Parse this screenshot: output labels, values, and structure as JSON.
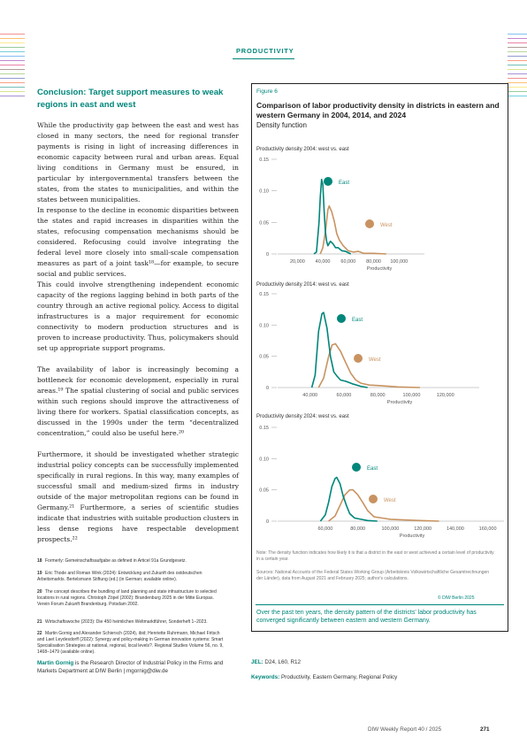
{
  "header": {
    "section": "PRODUCTIVITY"
  },
  "article": {
    "heading": "Conclusion: Target support measures to weak regions in east and west",
    "paragraphs": [
      "While the productivity gap between the east and west has closed in many sectors, the need for regional transfer payments is rising in light of increasing differences in economic capacity between rural and urban areas. Equal living conditions in Germany must be ensured, in particular by intergovernmental transfers between the states, from the states to municipalities, and within the states between municipalities.",
      "In response to the decline in economic disparities between the states and rapid increases in disparities within the states, refocusing compensation mechanisms should be considered. Refocusing could involve integrating the federal level more closely into small-scale compensation measures as part of a joint task¹⁸—for example, to secure social and public services.",
      "This could involve strengthening independent economic capacity of the regions lagging behind in both parts of the country through an active regional policy. Access to digital infrastructures is a major requirement for economic connectivity to modern production structures and is proven to increase productivity. Thus, policymakers should set up appropriate support programs.",
      "The availability of labor is increasingly becoming a bottleneck for economic development, especially in rural areas.¹⁹ The spatial clustering of social and public services within such regions should improve the attractiveness of living there for workers. Spatial classification concepts, as discussed in the 1990s under the term “decentralized concentration,” could also be useful here.²⁰",
      "Furthermore, it should be investigated whether strategic industrial policy concepts can be successfully implemented specifically in rural regions. In this way, many examples of successful small and medium-sized firms in industry outside of the major metropolitan regions can be found in Germany.²¹ Furthermore, a series of scientific studies indicate that industries with suitable production clusters in less dense regions have respectable development prospects.²²"
    ]
  },
  "footnotes": [
    {
      "num": "18",
      "text": "Formerly: Gemeinschaftsaufgabe as defined in Articel 91a Grundgesetz."
    },
    {
      "num": "19",
      "text": "Eric Thode and Roman Wink (2024): Entwicklung und Zukunft des ostdeutschen Arbeitsmarkts. Bertelsmann Stiftung (ed.) (in German; available online)."
    },
    {
      "num": "20",
      "text": "The concept describes the bundling of land planning and state infrastructure to selected locations in rural regions. Christoph Zöpel (2002): Brandenburg 2025 in der Mitte Europas. Verein Forum Zukunft Brandenburg. Potsdam 2002."
    },
    {
      "num": "21",
      "text": "Wirtschaftswoche (2023): Die 450 heimlichen Weltmarktführer, Sonderheft 1–2023."
    },
    {
      "num": "22",
      "text": "Martin Gornig and Alexander Schiersch (2024), ibid; Henriette Ruhrmann, Michael Fritsch and Laet Leydesdorff (2022): Synergy and policy-making in German innovation systems: Smart Specialisation Strategies at national, regional, local levels?. Regional Studies Volume 56, no. 9, 1468–1479 (available online)."
    }
  ],
  "figure": {
    "label": "Figure 6",
    "title": "Comparison of labor productivity density in districts in eastern and western Germany in 2004, 2014, and 2024",
    "subtitle": "Density function",
    "note": "Note: The density function indicates how likely it is that a district in the east or west achieved a certain level of productivity in a certain year.",
    "sources": "Sources: National Accounts of the Federal States Working Group (Arbeitskreis Volkswirtschaftliche Gesamtrechnungen der Länder), data from August 2021 and February 2025; author's calculations.",
    "copyright": "© DIW Berlin 2025",
    "caption": "Over the past ten years, the density pattern of the districts' labor productivity has converged significantly between eastern and western Germany.",
    "colors": {
      "east": "#00867a",
      "west": "#c89361"
    }
  },
  "chart_data": [
    {
      "type": "line",
      "title": "Productivity density 2004: west vs. east",
      "xlabel": "Productivity",
      "ylabel": "",
      "xlim": [
        10000,
        120000
      ],
      "ylim": [
        0,
        0.15
      ],
      "xticks": [
        20000,
        40000,
        60000,
        80000,
        100000
      ],
      "xtick_labels": [
        "20,000",
        "40,000",
        "60,000",
        "80,000",
        "100,000"
      ],
      "yticks": [
        0,
        0.05,
        0.1,
        0.15
      ],
      "ytick_labels": [
        "0",
        "0.05",
        "0.10",
        "0.15"
      ],
      "series": [
        {
          "name": "East",
          "color": "#00867a",
          "x": [
            33000,
            35000,
            37000,
            38000,
            39000,
            40000,
            41000,
            42000,
            43000,
            44000,
            46000,
            48000,
            50000,
            52000,
            55000,
            58000,
            62000
          ],
          "y": [
            0,
            0.003,
            0.05,
            0.09,
            0.118,
            0.11,
            0.07,
            0.035,
            0.02,
            0.013,
            0.02,
            0.016,
            0.01,
            0.01,
            0.005,
            0.004,
            0
          ]
        },
        {
          "name": "West",
          "color": "#c89361",
          "x": [
            38000,
            40000,
            42000,
            44000,
            45000,
            47000,
            49000,
            51000,
            53000,
            56000,
            60000,
            64000,
            68000,
            72000,
            80000,
            90000
          ],
          "y": [
            0,
            0.01,
            0.035,
            0.07,
            0.076,
            0.067,
            0.052,
            0.032,
            0.022,
            0.013,
            0.005,
            0.003,
            0.004,
            0.001,
            0.001,
            0
          ]
        }
      ]
    },
    {
      "type": "line",
      "title": "Productivity density 2014: west vs. east",
      "xlabel": "Productivity",
      "ylabel": "",
      "xlim": [
        25000,
        140000
      ],
      "ylim": [
        0,
        0.15
      ],
      "xticks": [
        40000,
        60000,
        80000,
        100000,
        120000
      ],
      "xtick_labels": [
        "40,000",
        "60,000",
        "80,000",
        "100,000",
        "120,000"
      ],
      "yticks": [
        0,
        0.05,
        0.1,
        0.15
      ],
      "ytick_labels": [
        "0",
        "0.05",
        "0.10",
        "0.15"
      ],
      "series": [
        {
          "name": "East",
          "color": "#00867a",
          "x": [
            41000,
            43000,
            45000,
            47000,
            48000,
            50000,
            52000,
            54000,
            56000,
            58000,
            61000,
            65000,
            70000,
            74000
          ],
          "y": [
            0,
            0.02,
            0.09,
            0.118,
            0.12,
            0.095,
            0.05,
            0.025,
            0.018,
            0.012,
            0.01,
            0.006,
            0.002,
            0
          ]
        },
        {
          "name": "West",
          "color": "#c89361",
          "x": [
            45000,
            48000,
            51000,
            53000,
            55000,
            58000,
            61000,
            64000,
            67000,
            70000,
            75000,
            82000,
            92000,
            105000
          ],
          "y": [
            0,
            0.015,
            0.05,
            0.068,
            0.07,
            0.058,
            0.04,
            0.023,
            0.012,
            0.007,
            0.004,
            0.003,
            0.001,
            0
          ]
        }
      ]
    },
    {
      "type": "line",
      "title": "Productivity density 2024: west vs. east",
      "xlabel": "Productivity",
      "ylabel": "",
      "xlim": [
        35000,
        170000
      ],
      "ylim": [
        0,
        0.15
      ],
      "xticks": [
        60000,
        80000,
        100000,
        120000,
        140000,
        160000
      ],
      "xtick_labels": [
        "60,000",
        "80,000",
        "100,000",
        "120,000",
        "140,000",
        "160,000"
      ],
      "yticks": [
        0,
        0.05,
        0.1,
        0.15
      ],
      "ytick_labels": [
        "0",
        "0.05",
        "0.10",
        "0.15"
      ],
      "series": [
        {
          "name": "East",
          "color": "#00867a",
          "x": [
            57000,
            60000,
            62000,
            64000,
            66000,
            67000,
            69000,
            71000,
            73000,
            75000,
            78000,
            82000,
            86000,
            92000
          ],
          "y": [
            0,
            0.01,
            0.03,
            0.055,
            0.068,
            0.07,
            0.06,
            0.04,
            0.025,
            0.012,
            0.005,
            0.003,
            0.001,
            0
          ]
        },
        {
          "name": "West",
          "color": "#c89361",
          "x": [
            62000,
            66000,
            69000,
            72000,
            75000,
            77000,
            80000,
            83000,
            86000,
            90000,
            95000,
            100000,
            108000,
            118000,
            130000
          ],
          "y": [
            0,
            0.008,
            0.025,
            0.042,
            0.05,
            0.05,
            0.042,
            0.03,
            0.017,
            0.007,
            0.005,
            0.003,
            0.002,
            0.001,
            0
          ]
        }
      ]
    }
  ],
  "author": {
    "name": "Martin Gornig",
    "text": "is the Research Director of Industrial Policy in the Firms and Markets Department at DIW Berlin | mgornig@diw.de"
  },
  "jel": {
    "label": "JEL:",
    "value": "D24, L60, R12"
  },
  "keywords": {
    "label": "Keywords:",
    "value": "Productivity, Eastern Germany, Regional Policy"
  },
  "footer": {
    "report": "DIW Weekly Report 40 / 2025",
    "page": "271"
  }
}
